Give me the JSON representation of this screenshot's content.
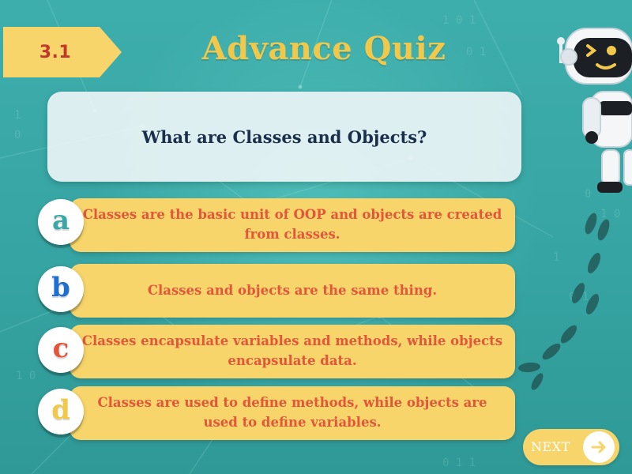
{
  "quiz": {
    "number": "3.1",
    "title": "Advance Quiz",
    "question": "What are Classes and Objects?"
  },
  "options": [
    {
      "letter": "a",
      "text": "Classes are the basic unit of OOP and objects are created from classes.",
      "letter_color": "#3aa8a6"
    },
    {
      "letter": "b",
      "text": "Classes and objects are the same thing.",
      "letter_color": "#1f6ed4"
    },
    {
      "letter": "c",
      "text": "Classes encapsulate variables and methods, while objects encapsulate data.",
      "letter_color": "#e4553a"
    },
    {
      "letter": "d",
      "text": "Classes are used to define methods, while objects are used to define variables.",
      "letter_color": "#f2c84b"
    }
  ],
  "next_button": {
    "label": "NEXT",
    "icon": "arrow-right-icon"
  },
  "mascot": "robot-mascot",
  "colors": {
    "background": "#3aa8a6",
    "accent_yellow": "#f7d56b",
    "title_yellow": "#f2c84b",
    "option_text": "#e4553a",
    "question_text": "#1a2f4b",
    "badge_text": "#c0392b"
  }
}
